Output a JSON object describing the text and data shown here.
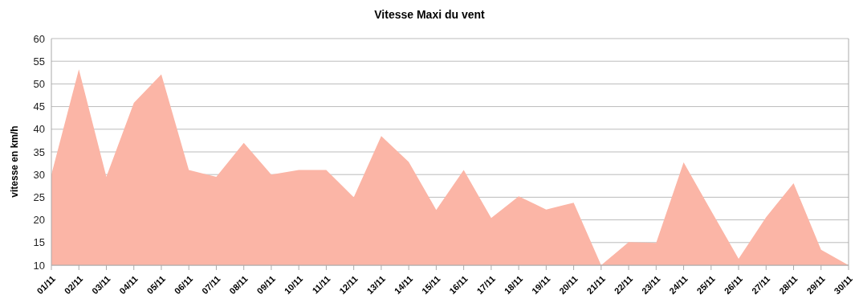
{
  "chart_data": {
    "type": "area",
    "title": "Vitesse Maxi du vent",
    "ylabel": "vitesse en km/h",
    "categories": [
      "01/11",
      "02/11",
      "03/11",
      "04/11",
      "05/11",
      "06/11",
      "07/11",
      "08/11",
      "09/11",
      "10/11",
      "11/11",
      "12/11",
      "13/11",
      "14/11",
      "15/11",
      "16/11",
      "17/11",
      "18/11",
      "19/11",
      "20/11",
      "21/11",
      "22/11",
      "23/11",
      "24/11",
      "25/11",
      "26/11",
      "27/11",
      "28/11",
      "29/11",
      "30/11"
    ],
    "series": [
      {
        "color": "#fbb5a6",
        "values": [
          30,
          53.2,
          29.5,
          45.8,
          52.1,
          31,
          29.5,
          37,
          30,
          31,
          31,
          25,
          38.5,
          32.8,
          22.2,
          31,
          20.4,
          25.2,
          22.3,
          23.8,
          10,
          15.1,
          14.9,
          32.7,
          22,
          11.4,
          20.6,
          28.1,
          13.4,
          10
        ]
      }
    ],
    "ylim": [
      10,
      60
    ],
    "yticks": [
      10,
      15,
      20,
      25,
      30,
      35,
      40,
      45,
      50,
      55,
      60
    ],
    "grid": "y",
    "legend": false
  }
}
